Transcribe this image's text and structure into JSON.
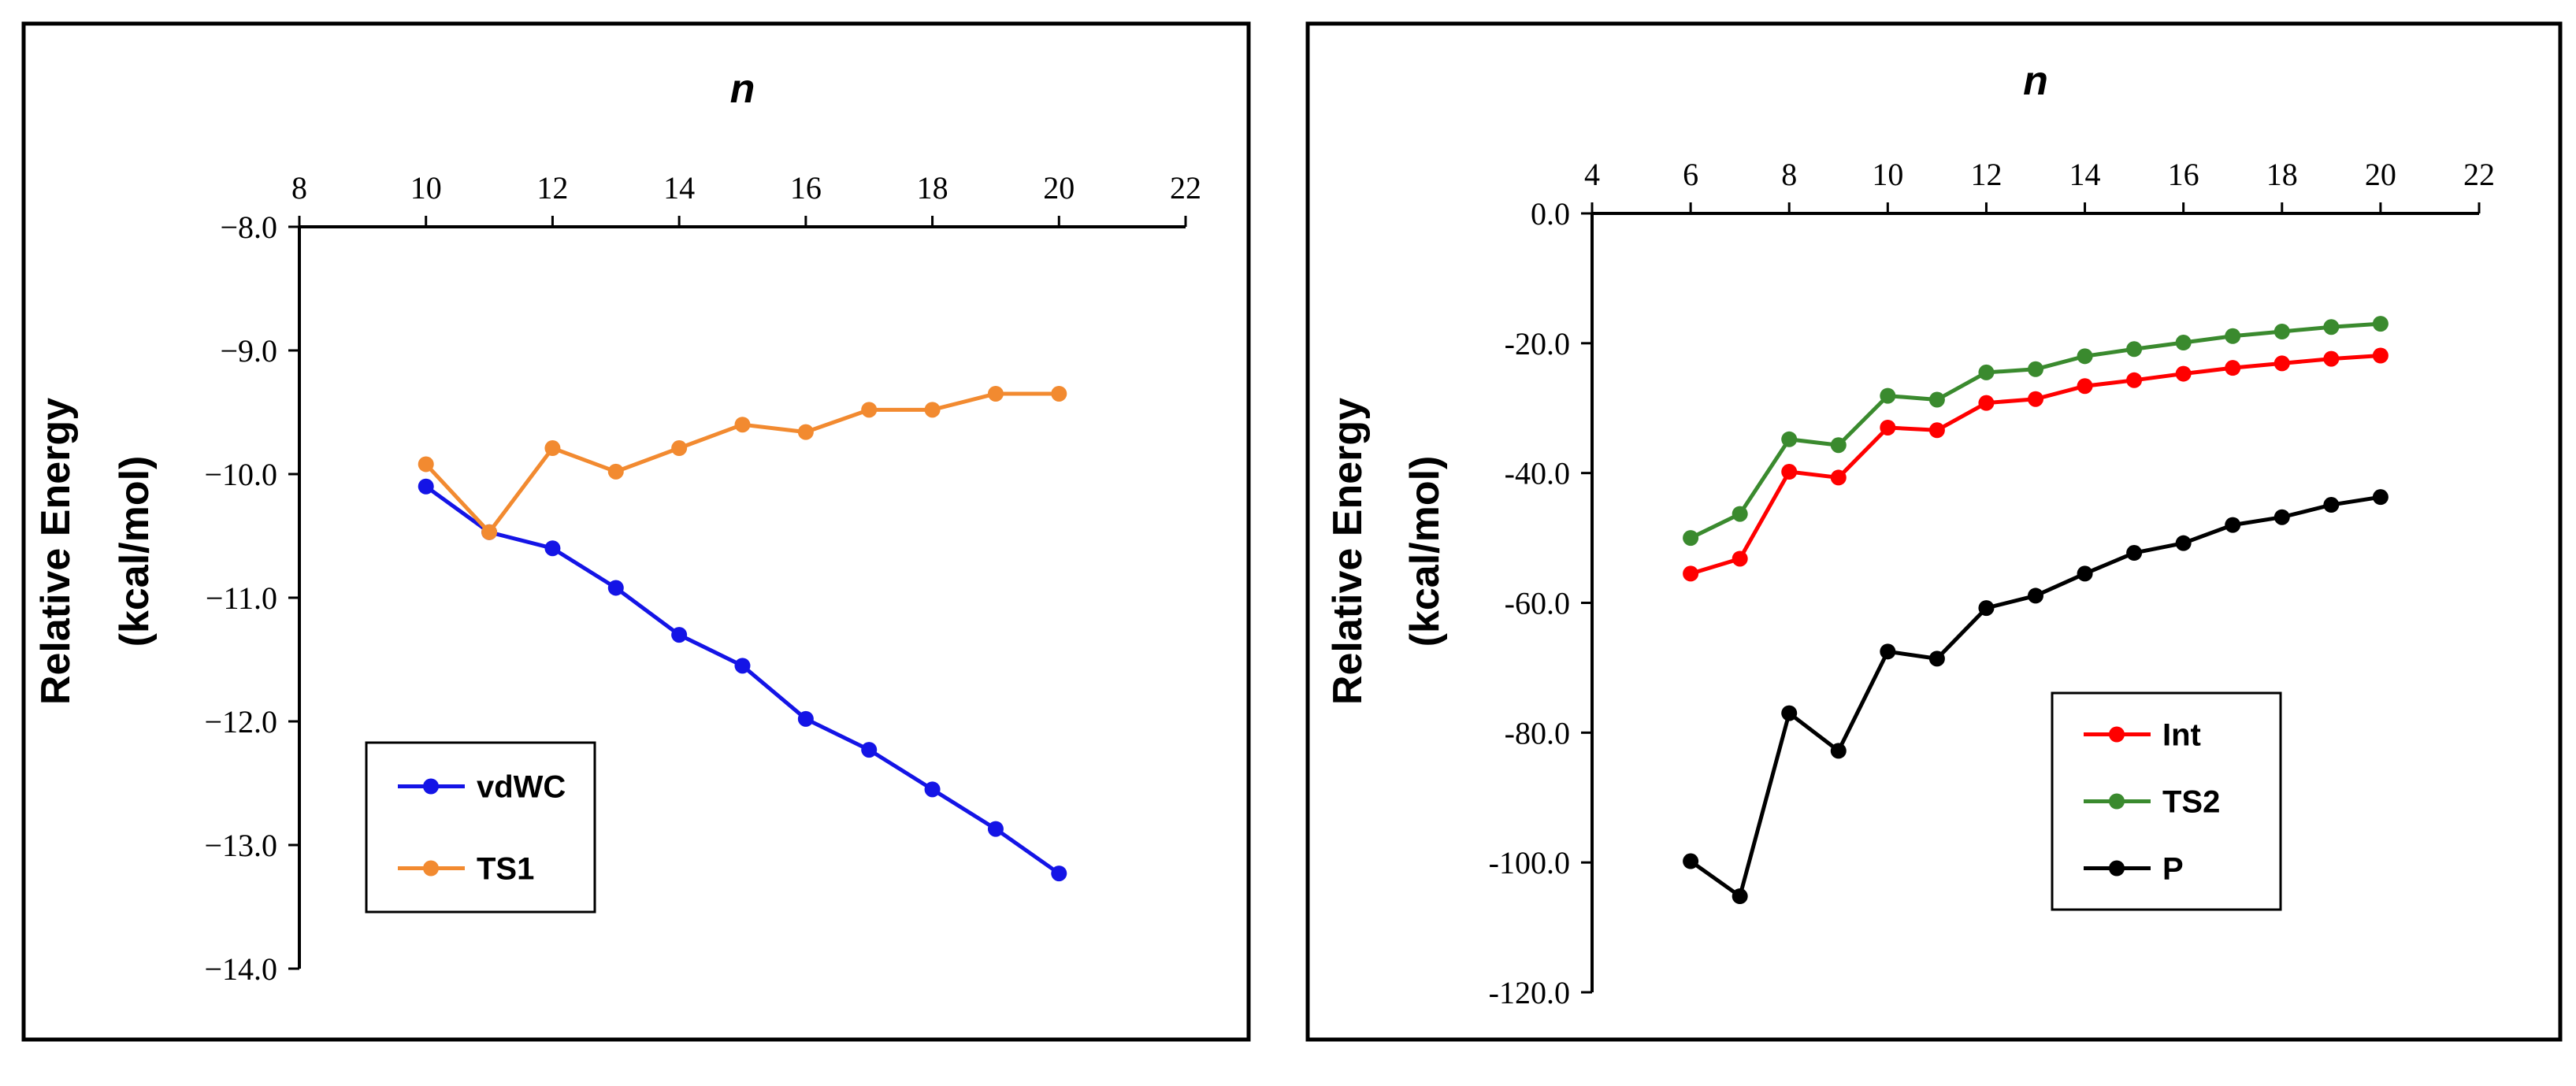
{
  "chart_data": [
    {
      "type": "line",
      "xlabel": "n",
      "ylabel": [
        "Relative Energy",
        "(kcal/mol)"
      ],
      "xlim": [
        8,
        22
      ],
      "ylim": [
        -14.0,
        -8.0
      ],
      "xticks": [
        8,
        10,
        12,
        14,
        16,
        18,
        20,
        22
      ],
      "yticks": [
        -8.0,
        -9.0,
        -10.0,
        -11.0,
        -12.0,
        -13.0,
        -14.0
      ],
      "xtick_labels": [
        "8",
        "10",
        "12",
        "14",
        "16",
        "18",
        "20",
        "22"
      ],
      "ytick_labels": [
        "−8.0",
        "−9.0",
        "−10.0",
        "−11.0",
        "−12.0",
        "−13.0",
        "−14.0"
      ],
      "grid": false,
      "legend_position": "bottom-left",
      "series": [
        {
          "name": "vdWC",
          "color": "#1414e6",
          "x": [
            10,
            11,
            12,
            13,
            14,
            15,
            16,
            17,
            18,
            19,
            20
          ],
          "y": [
            -10.1,
            -10.47,
            -10.6,
            -10.92,
            -11.3,
            -11.55,
            -11.98,
            -12.23,
            -12.55,
            -12.87,
            -13.23
          ]
        },
        {
          "name": "TS1",
          "color": "#f28a30",
          "x": [
            10,
            11,
            12,
            13,
            14,
            15,
            16,
            17,
            18,
            19,
            20
          ],
          "y": [
            -9.92,
            -10.47,
            -9.79,
            -9.98,
            -9.79,
            -9.6,
            -9.66,
            -9.48,
            -9.48,
            -9.35,
            -9.35
          ]
        }
      ]
    },
    {
      "type": "line",
      "xlabel": "n",
      "ylabel": [
        "Relative Energy",
        "(kcal/mol)"
      ],
      "xlim": [
        4,
        22
      ],
      "ylim": [
        -120.0,
        0.0
      ],
      "xticks": [
        4,
        6,
        8,
        10,
        12,
        14,
        16,
        18,
        20,
        22
      ],
      "yticks": [
        0,
        -20,
        -40,
        -60,
        -80,
        -100,
        -120
      ],
      "xtick_labels": [
        "4",
        "6",
        "8",
        "10",
        "12",
        "14",
        "16",
        "18",
        "20",
        "22"
      ],
      "ytick_labels": [
        "0.0",
        "-20.0",
        "-40.0",
        "-60.0",
        "-80.0",
        "-100.0",
        "-120.0"
      ],
      "grid": false,
      "legend_position": "bottom-right",
      "series": [
        {
          "name": "Int",
          "color": "#ff0000",
          "x": [
            6,
            7,
            8,
            9,
            10,
            11,
            12,
            13,
            14,
            15,
            16,
            17,
            18,
            19,
            20
          ],
          "y": [
            -55.5,
            -53.2,
            -39.8,
            -40.7,
            -33.0,
            -33.4,
            -29.2,
            -28.6,
            -26.6,
            -25.7,
            -24.7,
            -23.8,
            -23.1,
            -22.4,
            -21.9
          ]
        },
        {
          "name": "TS2",
          "color": "#3a8a2e",
          "x": [
            6,
            7,
            8,
            9,
            10,
            11,
            12,
            13,
            14,
            15,
            16,
            17,
            18,
            19,
            20
          ],
          "y": [
            -50.0,
            -46.3,
            -34.8,
            -35.7,
            -28.1,
            -28.7,
            -24.5,
            -24.0,
            -22.0,
            -20.9,
            -19.9,
            -18.9,
            -18.2,
            -17.5,
            -17.0
          ]
        },
        {
          "name": "P",
          "color": "#000000",
          "x": [
            6,
            7,
            8,
            9,
            10,
            11,
            12,
            13,
            14,
            15,
            16,
            17,
            18,
            19,
            20
          ],
          "y": [
            -99.8,
            -105.2,
            -77.0,
            -82.8,
            -67.5,
            -68.6,
            -60.8,
            -58.9,
            -55.5,
            -52.3,
            -50.8,
            -48.0,
            -46.8,
            -44.9,
            -43.7
          ]
        }
      ]
    }
  ]
}
